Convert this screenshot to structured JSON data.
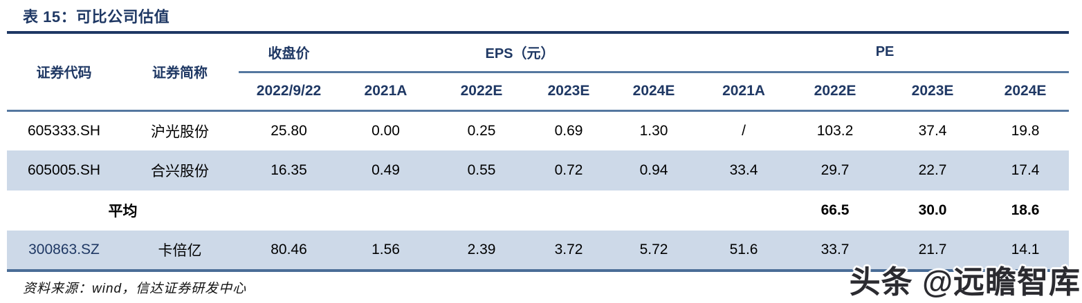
{
  "title": "表 15：可比公司估值",
  "table": {
    "group_headers": {
      "code": "证券代码",
      "name": "证券简称",
      "close": "收盘价",
      "eps": "EPS（元）",
      "pe": "PE"
    },
    "sub_headers": {
      "close_date": "2022/9/22",
      "eps": [
        "2021A",
        "2022E",
        "2023E",
        "2024E"
      ],
      "pe": [
        "2021A",
        "2022E",
        "2023E",
        "2024E"
      ]
    },
    "rows": [
      {
        "code": "605333.SH",
        "name": "沪光股份",
        "close": "25.80",
        "eps": [
          "0.00",
          "0.25",
          "0.69",
          "1.30"
        ],
        "pe": [
          "/",
          "103.2",
          "37.4",
          "19.8"
        ]
      },
      {
        "code": "605005.SH",
        "name": "合兴股份",
        "close": "16.35",
        "eps": [
          "0.49",
          "0.55",
          "0.72",
          "0.94"
        ],
        "pe": [
          "33.4",
          "29.7",
          "22.7",
          "17.4"
        ]
      },
      {
        "label": "平均",
        "close": "",
        "eps": [
          "",
          "",
          "",
          ""
        ],
        "pe": [
          "",
          "66.5",
          "30.0",
          "18.6"
        ]
      },
      {
        "code": "300863.SZ",
        "name": "卡倍亿",
        "close": "80.46",
        "eps": [
          "1.56",
          "2.39",
          "3.72",
          "5.72"
        ],
        "pe": [
          "51.6",
          "33.7",
          "21.7",
          "14.1"
        ]
      }
    ]
  },
  "footer": {
    "source": "资料来源：wind，信达证券研发中心"
  },
  "watermark": {
    "text": "头条 @远瞻智库"
  },
  "colors": {
    "navy": "#1f3864",
    "steel": "#54779f",
    "bottom": "#4a6d96",
    "rowalt": "#cdd9e8",
    "bodytext": "#000000",
    "wmark": "#2b2b30"
  }
}
